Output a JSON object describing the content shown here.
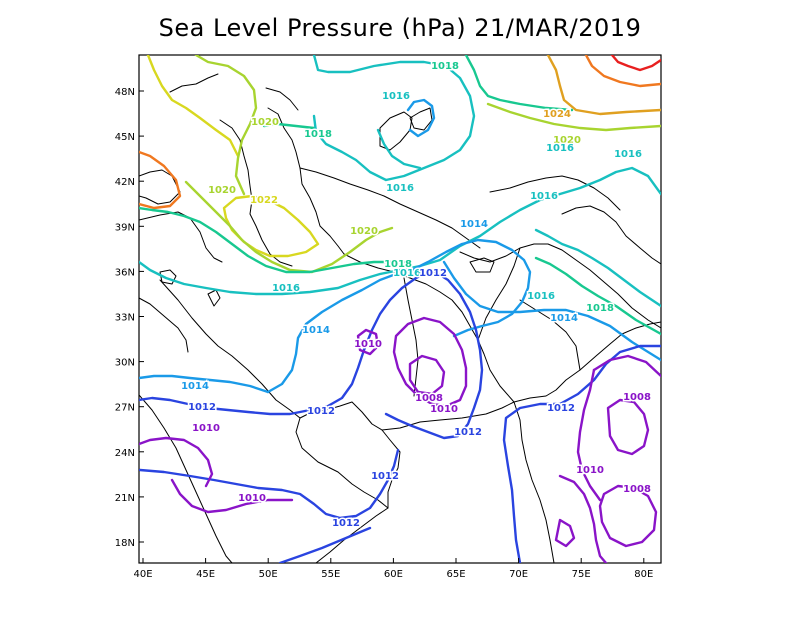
{
  "title": "Sea Level Pressure (hPa) 21/MAR/2019",
  "axes": {
    "lon_ticks": [
      "40E",
      "45E",
      "50E",
      "55E",
      "60E",
      "65E",
      "70E",
      "75E",
      "80E"
    ],
    "lat_ticks": [
      "48N",
      "45N",
      "42N",
      "39N",
      "36N",
      "33N",
      "30N",
      "27N",
      "24N",
      "21N",
      "18N"
    ]
  },
  "colors": {
    "1008": "#8a14c8",
    "1010": "#8a14c8",
    "1012": "#2a44e0",
    "1014": "#1a9ae8",
    "1016": "#18c0c0",
    "1018": "#18c890",
    "1020": "#a8d430",
    "1022": "#d8d820",
    "1024": "#e0a020",
    "1026": "#f07820",
    "1028": "#e82020"
  },
  "contour_labels": [
    {
      "text": "1018",
      "level": "1018"
    },
    {
      "text": "1016",
      "level": "1016"
    },
    {
      "text": "1018",
      "level": "1018"
    },
    {
      "text": "1020",
      "level": "1020"
    },
    {
      "text": "1016",
      "level": "1016"
    },
    {
      "text": "1024",
      "level": "1024"
    },
    {
      "text": "1020",
      "level": "1020"
    },
    {
      "text": "1016",
      "level": "1016"
    },
    {
      "text": "1016",
      "level": "1016"
    },
    {
      "text": "1020",
      "level": "1020"
    },
    {
      "text": "1022",
      "level": "1022"
    },
    {
      "text": "1016",
      "level": "1016"
    },
    {
      "text": "1014",
      "level": "1014"
    },
    {
      "text": "1020",
      "level": "1020"
    },
    {
      "text": "1018",
      "level": "1018"
    },
    {
      "text": "1016",
      "level": "1016"
    },
    {
      "text": "1012",
      "level": "1012"
    },
    {
      "text": "1016",
      "level": "1016"
    },
    {
      "text": "1016",
      "level": "1016"
    },
    {
      "text": "1018",
      "level": "1018"
    },
    {
      "text": "1014",
      "level": "1014"
    },
    {
      "text": "1014",
      "level": "1014"
    },
    {
      "text": "1010",
      "level": "1010"
    },
    {
      "text": "1014",
      "level": "1014"
    },
    {
      "text": "1012",
      "level": "1012"
    },
    {
      "text": "1012",
      "level": "1012"
    },
    {
      "text": "1008",
      "level": "1008"
    },
    {
      "text": "1010",
      "level": "1010"
    },
    {
      "text": "1012",
      "level": "1012"
    },
    {
      "text": "1012",
      "level": "1012"
    },
    {
      "text": "1008",
      "level": "1008"
    },
    {
      "text": "1010",
      "level": "1010"
    },
    {
      "text": "1010",
      "level": "1010"
    },
    {
      "text": "1012",
      "level": "1012"
    },
    {
      "text": "1010",
      "level": "1010"
    },
    {
      "text": "1008",
      "level": "1008"
    },
    {
      "text": "1012",
      "level": "1012"
    }
  ]
}
